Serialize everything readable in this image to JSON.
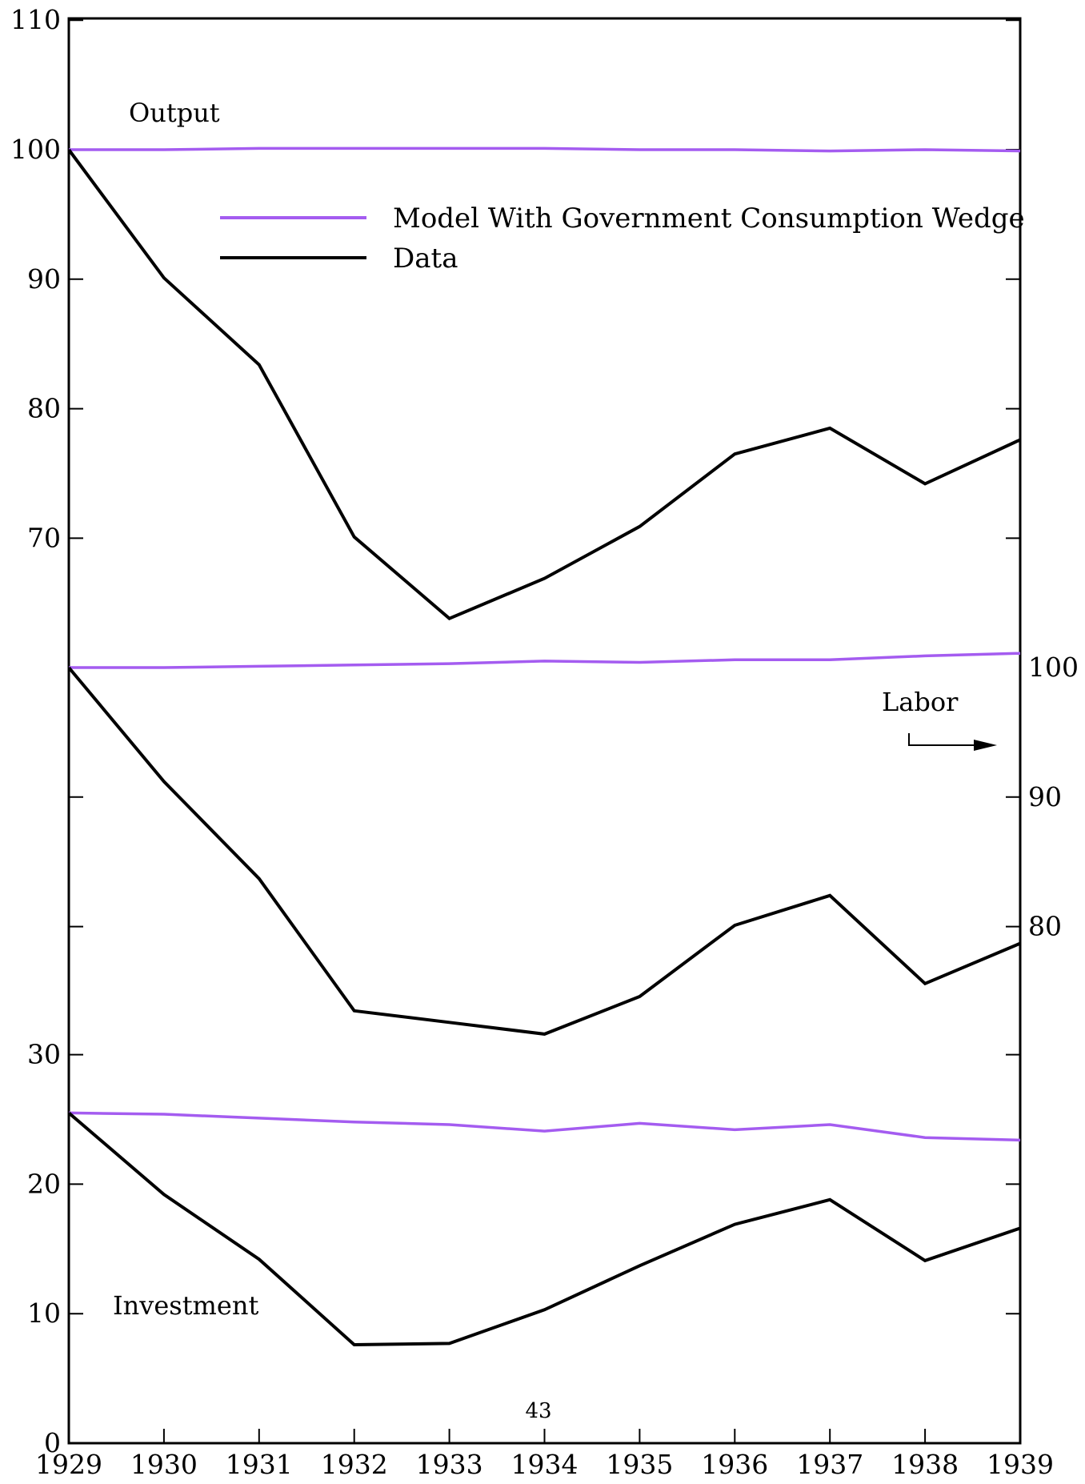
{
  "page_number": "43",
  "colors": {
    "model": "#a45cf0",
    "data": "#000000"
  },
  "legend": {
    "position": "upper-middle",
    "model_label": "Model With Government Consumption Wedge",
    "data_label": "Data"
  },
  "chart_data": {
    "type": "line",
    "x": [
      1929,
      1930,
      1931,
      1932,
      1933,
      1934,
      1935,
      1936,
      1937,
      1938,
      1939
    ],
    "x_tick_labels": [
      "1929",
      "1930",
      "1931",
      "1932",
      "1933",
      "1934",
      "1935",
      "1936",
      "1937",
      "1938",
      "1939"
    ],
    "panels": [
      {
        "label": "Output",
        "axis": "left",
        "ylim": [
          60,
          110
        ],
        "y_tick_labels": [
          "70",
          "80",
          "90",
          "100",
          "110"
        ],
        "series": [
          {
            "name": "Model With Government Consumption Wedge",
            "values": [
              100,
              100,
              100.1,
              100.1,
              100.1,
              100.1,
              100,
              100,
              99.9,
              100,
              99.9
            ]
          },
          {
            "name": "Data",
            "values": [
              100,
              90.1,
              83.4,
              70.1,
              63.8,
              66.9,
              70.9,
              76.5,
              78.5,
              74.2,
              77.6
            ]
          }
        ]
      },
      {
        "label": "Labor",
        "axis": "right",
        "ylim": [
          70,
          100
        ],
        "y_tick_labels": [
          "80",
          "90",
          "100"
        ],
        "series": [
          {
            "name": "Model With Government Consumption Wedge",
            "values": [
              100,
              100,
              100.1,
              100.2,
              100.3,
              100.5,
              100.4,
              100.6,
              100.6,
              100.9,
              101.1
            ]
          },
          {
            "name": "Data",
            "values": [
              100,
              91.2,
              83.7,
              73.5,
              72.6,
              71.7,
              74.6,
              80.1,
              82.4,
              75.6,
              78.7
            ]
          }
        ]
      },
      {
        "label": "Investment",
        "axis": "left",
        "ylim": [
          0,
          30
        ],
        "y_tick_labels": [
          "0",
          "10",
          "20",
          "30"
        ],
        "series": [
          {
            "name": "Model With Government Consumption Wedge",
            "values": [
              25.5,
              25.4,
              25.1,
              24.8,
              24.6,
              24.1,
              24.7,
              24.2,
              24.6,
              23.6,
              23.4
            ]
          },
          {
            "name": "Data",
            "values": [
              25.5,
              19.2,
              14.2,
              7.6,
              7.7,
              10.3,
              13.7,
              16.9,
              18.8,
              14.1,
              16.6
            ]
          }
        ]
      }
    ]
  }
}
